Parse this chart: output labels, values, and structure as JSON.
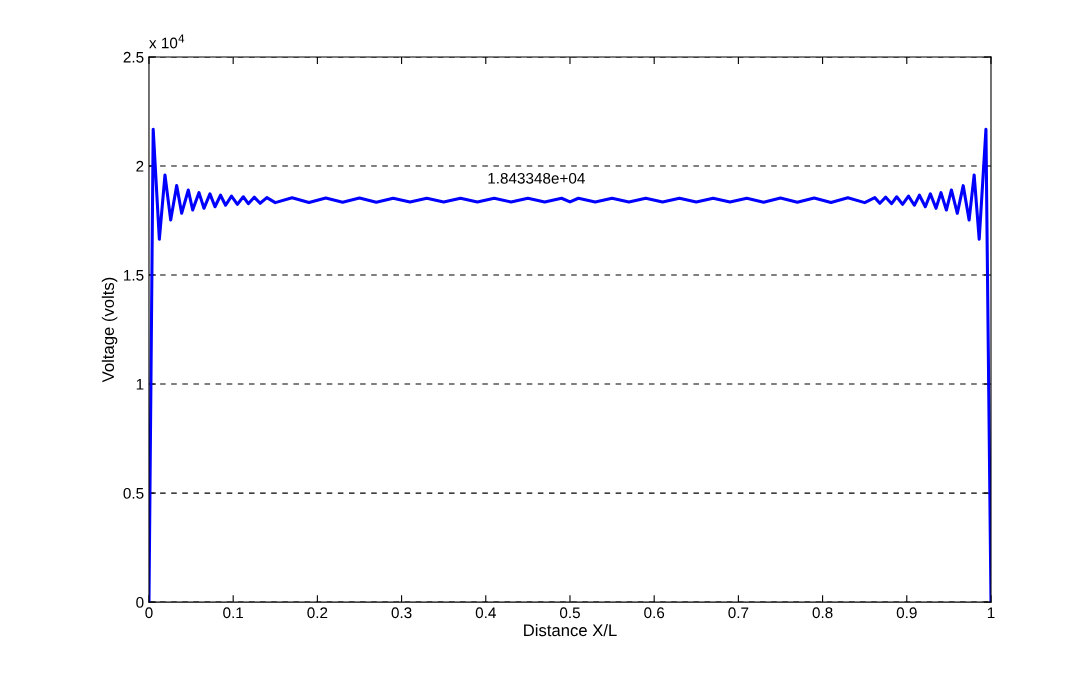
{
  "chart_data": {
    "type": "line",
    "xlabel": "Distance X/L",
    "ylabel": "Voltage (volts)",
    "annotations": [
      "x 10$^{4}$",
      "1.843348e+04"
    ],
    "xlim": [
      0,
      1
    ],
    "xticks": [
      0,
      0.1,
      0.2,
      0.3,
      0.4,
      0.5,
      0.6,
      0.7,
      0.8,
      0.9,
      1
    ],
    "ylim": [
      0,
      2.5
    ],
    "yticks": [
      0,
      0.5,
      1,
      1.5,
      2,
      2.5
    ],
    "grid": "y",
    "line_style": "solid",
    "x": [
      0,
      0.005,
      0.0123,
      0.019,
      0.0258,
      0.0329,
      0.0388,
      0.0467,
      0.0519,
      0.0594,
      0.0653,
      0.0724,
      0.0784,
      0.085,
      0.091,
      0.098,
      0.105,
      0.112,
      0.118,
      0.125,
      0.132,
      0.14,
      0.15,
      0.17,
      0.19,
      0.21,
      0.23,
      0.25,
      0.27,
      0.29,
      0.31,
      0.33,
      0.35,
      0.37,
      0.39,
      0.41,
      0.43,
      0.45,
      0.47,
      0.49,
      0.5,
      0.51,
      0.53,
      0.55,
      0.57,
      0.59,
      0.61,
      0.63,
      0.65,
      0.67,
      0.69,
      0.71,
      0.73,
      0.75,
      0.77,
      0.79,
      0.81,
      0.83,
      0.85,
      0.862,
      0.868,
      0.875,
      0.882,
      0.888,
      0.895,
      0.902,
      0.909,
      0.915,
      0.922,
      0.928,
      0.9347,
      0.9406,
      0.947,
      0.953,
      0.96,
      0.967,
      0.974,
      0.98,
      0.986,
      0.994,
      1
    ],
    "series": [
      {
        "color": "#0000ff",
        "values": [
          0,
          2.168,
          1.664,
          1.959,
          1.752,
          1.91,
          1.783,
          1.89,
          1.798,
          1.878,
          1.806,
          1.872,
          1.813,
          1.866,
          1.82,
          1.862,
          1.824,
          1.859,
          1.827,
          1.857,
          1.829,
          1.855,
          1.832,
          1.854,
          1.833,
          1.853,
          1.834,
          1.853,
          1.834,
          1.852,
          1.835,
          1.852,
          1.835,
          1.852,
          1.835,
          1.852,
          1.835,
          1.852,
          1.835,
          1.852,
          1.835,
          1.852,
          1.835,
          1.852,
          1.835,
          1.852,
          1.835,
          1.852,
          1.835,
          1.852,
          1.835,
          1.852,
          1.834,
          1.853,
          1.834,
          1.853,
          1.833,
          1.854,
          1.832,
          1.855,
          1.829,
          1.857,
          1.827,
          1.859,
          1.824,
          1.862,
          1.82,
          1.866,
          1.813,
          1.872,
          1.806,
          1.878,
          1.798,
          1.89,
          1.783,
          1.91,
          1.752,
          1.959,
          1.664,
          2.168,
          0
        ]
      }
    ]
  }
}
